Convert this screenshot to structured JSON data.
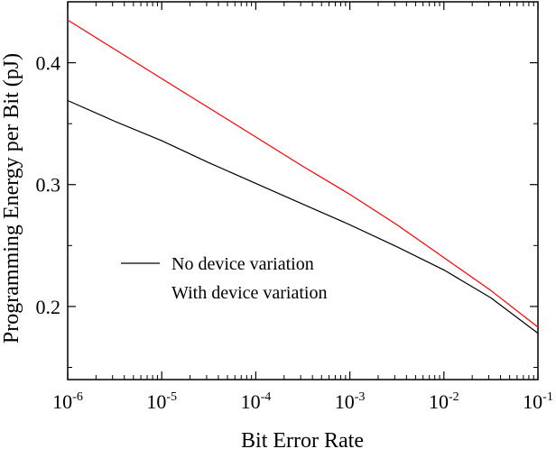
{
  "chart_data": {
    "type": "line",
    "title": "",
    "xlabel": "Bit Error Rate",
    "ylabel": "Programming Energy per Bit (pJ)",
    "xscale": "log",
    "xlim": [
      1e-06,
      0.1
    ],
    "ylim": [
      0.14,
      0.45
    ],
    "grid": false,
    "legend_placement": "lower-left",
    "x_ticks": [
      {
        "base": "10",
        "exp": "-6",
        "value": 1e-06
      },
      {
        "base": "10",
        "exp": "-5",
        "value": 1e-05
      },
      {
        "base": "10",
        "exp": "-4",
        "value": 0.0001
      },
      {
        "base": "10",
        "exp": "-3",
        "value": 0.001
      },
      {
        "base": "10",
        "exp": "-2",
        "value": 0.01
      },
      {
        "base": "10",
        "exp": "-1",
        "value": 0.1
      }
    ],
    "y_ticks": [
      {
        "label": "0.2",
        "value": 0.2
      },
      {
        "label": "0.3",
        "value": 0.3
      },
      {
        "label": "0.4",
        "value": 0.4
      }
    ],
    "series": [
      {
        "name": "No device variation",
        "color": "#000000",
        "x": [
          1e-06,
          3.16e-06,
          1e-05,
          3.16e-05,
          0.0001,
          0.000316,
          0.001,
          0.00316,
          0.01,
          0.0316,
          0.1
        ],
        "y": [
          0.369,
          0.352,
          0.336,
          0.318,
          0.301,
          0.284,
          0.267,
          0.249,
          0.23,
          0.207,
          0.178
        ]
      },
      {
        "name": "With device variation",
        "color": "#ff0000",
        "x": [
          1e-06,
          3.16e-06,
          1e-05,
          3.16e-05,
          0.0001,
          0.000316,
          0.001,
          0.00316,
          0.01,
          0.0316,
          0.1
        ],
        "y": [
          0.435,
          0.411,
          0.387,
          0.363,
          0.339,
          0.315,
          0.292,
          0.267,
          0.24,
          0.213,
          0.183
        ]
      }
    ]
  }
}
